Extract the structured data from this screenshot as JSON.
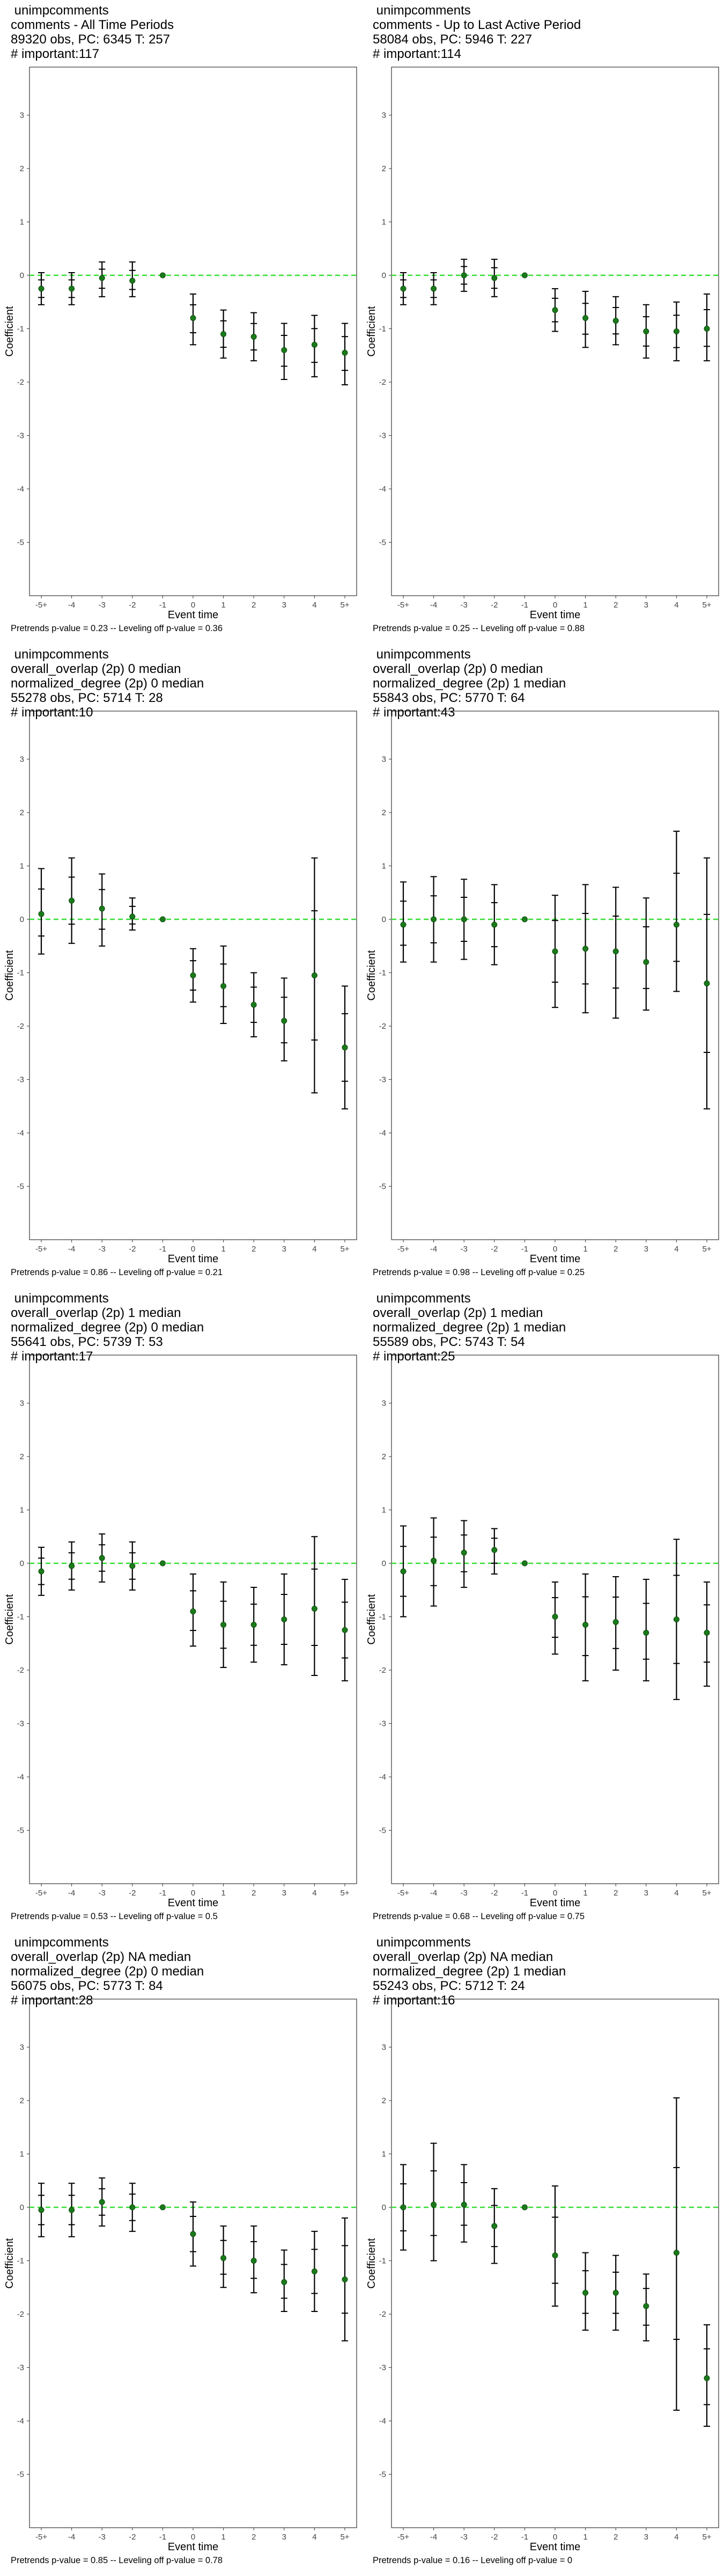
{
  "chart_data": [
    {
      "type": "scatter",
      "title_lines": [
        " unimpcomments",
        "comments - All Time Periods",
        "89320 obs, PC: 6345 T: 257",
        "# important:117"
      ],
      "xlabel": "Event time",
      "ylabel": "Coefficient",
      "categories": [
        "-5+",
        "-4",
        "-3",
        "-2",
        "-1",
        "0",
        "1",
        "2",
        "3",
        "4",
        "5+"
      ],
      "ylim": [
        -6,
        3.9
      ],
      "yticks": [
        -5,
        -4,
        -3,
        -2,
        -1,
        0,
        1,
        2,
        3
      ],
      "series": [
        {
          "values": [
            -0.25,
            -0.25,
            -0.05,
            -0.1,
            0,
            -0.8,
            -1.1,
            -1.15,
            -1.4,
            -1.3,
            -1.45
          ],
          "ci_low": [
            -0.55,
            -0.55,
            -0.4,
            -0.4,
            0,
            -1.3,
            -1.55,
            -1.6,
            -1.95,
            -1.9,
            -2.05
          ],
          "ci_high": [
            0.05,
            0.05,
            0.25,
            0.25,
            0,
            -0.35,
            -0.65,
            -0.7,
            -0.9,
            -0.75,
            -0.9
          ]
        }
      ],
      "footnote": "Pretrends p-value = 0.23 -- Leveling off p-value = 0.36"
    },
    {
      "type": "scatter",
      "title_lines": [
        " unimpcomments",
        "comments - Up to Last Active Period",
        "58084 obs, PC: 5946 T: 227",
        "# important:114"
      ],
      "xlabel": "Event time",
      "ylabel": "Coefficient",
      "categories": [
        "-5+",
        "-4",
        "-3",
        "-2",
        "-1",
        "0",
        "1",
        "2",
        "3",
        "4",
        "5+"
      ],
      "ylim": [
        -6,
        3.9
      ],
      "yticks": [
        -5,
        -4,
        -3,
        -2,
        -1,
        0,
        1,
        2,
        3
      ],
      "series": [
        {
          "values": [
            -0.25,
            -0.25,
            0.0,
            -0.05,
            0,
            -0.65,
            -0.8,
            -0.85,
            -1.05,
            -1.05,
            -1.0
          ],
          "ci_low": [
            -0.55,
            -0.55,
            -0.3,
            -0.4,
            0,
            -1.05,
            -1.35,
            -1.3,
            -1.55,
            -1.6,
            -1.6
          ],
          "ci_high": [
            0.05,
            0.05,
            0.3,
            0.3,
            0,
            -0.25,
            -0.3,
            -0.4,
            -0.55,
            -0.5,
            -0.35
          ]
        }
      ],
      "footnote": "Pretrends p-value = 0.25 -- Leveling off p-value = 0.88"
    },
    {
      "type": "scatter",
      "title_lines": [
        " unimpcomments",
        "overall_overlap (2p) 0 median",
        "normalized_degree (2p) 0 median",
        "55278 obs, PC: 5714 T: 28",
        "# important:10"
      ],
      "xlabel": "Event time",
      "ylabel": "Coefficient",
      "categories": [
        "-5+",
        "-4",
        "-3",
        "-2",
        "-1",
        "0",
        "1",
        "2",
        "3",
        "4",
        "5+"
      ],
      "ylim": [
        -6,
        3.9
      ],
      "yticks": [
        -5,
        -4,
        -3,
        -2,
        -1,
        0,
        1,
        2,
        3
      ],
      "series": [
        {
          "values": [
            0.1,
            0.35,
            0.2,
            0.05,
            0,
            -1.05,
            -1.25,
            -1.6,
            -1.9,
            -1.05,
            -2.4
          ],
          "ci_low": [
            -0.65,
            -0.45,
            -0.5,
            -0.2,
            0,
            -1.55,
            -1.95,
            -2.2,
            -2.65,
            -3.25,
            -3.55
          ],
          "ci_high": [
            0.95,
            1.15,
            0.85,
            0.4,
            0,
            -0.55,
            -0.5,
            -1.0,
            -1.1,
            1.15,
            -1.25
          ]
        }
      ],
      "footnote": "Pretrends p-value = 0.86 -- Leveling off p-value = 0.21"
    },
    {
      "type": "scatter",
      "title_lines": [
        " unimpcomments",
        "overall_overlap (2p) 0 median",
        "normalized_degree (2p) 1 median",
        "55843 obs, PC: 5770 T: 64",
        "# important:43"
      ],
      "xlabel": "Event time",
      "ylabel": "Coefficient",
      "categories": [
        "-5+",
        "-4",
        "-3",
        "-2",
        "-1",
        "0",
        "1",
        "2",
        "3",
        "4",
        "5+"
      ],
      "ylim": [
        -6,
        3.9
      ],
      "yticks": [
        -5,
        -4,
        -3,
        -2,
        -1,
        0,
        1,
        2,
        3
      ],
      "series": [
        {
          "values": [
            -0.1,
            0.0,
            0.0,
            -0.1,
            0,
            -0.6,
            -0.55,
            -0.6,
            -0.8,
            -0.1,
            -1.2
          ],
          "ci_low": [
            -0.8,
            -0.8,
            -0.75,
            -0.85,
            0,
            -1.65,
            -1.75,
            -1.85,
            -1.7,
            -1.35,
            -3.55
          ],
          "ci_high": [
            0.7,
            0.8,
            0.75,
            0.65,
            0,
            0.45,
            0.65,
            0.6,
            0.4,
            1.65,
            1.15
          ]
        }
      ],
      "footnote": "Pretrends p-value = 0.98 -- Leveling off p-value = 0.25"
    },
    {
      "type": "scatter",
      "title_lines": [
        " unimpcomments",
        "overall_overlap (2p) 1 median",
        "normalized_degree (2p) 0 median",
        "55641 obs, PC: 5739 T: 53",
        "# important:17"
      ],
      "xlabel": "Event time",
      "ylabel": "Coefficient",
      "categories": [
        "-5+",
        "-4",
        "-3",
        "-2",
        "-1",
        "0",
        "1",
        "2",
        "3",
        "4",
        "5+"
      ],
      "ylim": [
        -6,
        3.9
      ],
      "yticks": [
        -5,
        -4,
        -3,
        -2,
        -1,
        0,
        1,
        2,
        3
      ],
      "series": [
        {
          "values": [
            -0.15,
            -0.05,
            0.1,
            -0.05,
            0,
            -0.9,
            -1.15,
            -1.15,
            -1.05,
            -0.85,
            -1.25
          ],
          "ci_low": [
            -0.6,
            -0.5,
            -0.35,
            -0.5,
            0,
            -1.55,
            -1.95,
            -1.85,
            -1.9,
            -2.1,
            -2.2
          ],
          "ci_high": [
            0.3,
            0.4,
            0.55,
            0.4,
            0,
            -0.2,
            -0.35,
            -0.45,
            -0.2,
            0.5,
            -0.3
          ]
        }
      ],
      "footnote": "Pretrends p-value = 0.53 -- Leveling off p-value = 0.5"
    },
    {
      "type": "scatter",
      "title_lines": [
        " unimpcomments",
        "overall_overlap (2p) 1 median",
        "normalized_degree (2p) 1 median",
        "55589 obs, PC: 5743 T: 54",
        "# important:25"
      ],
      "xlabel": "Event time",
      "ylabel": "Coefficient",
      "categories": [
        "-5+",
        "-4",
        "-3",
        "-2",
        "-1",
        "0",
        "1",
        "2",
        "3",
        "4",
        "5+"
      ],
      "ylim": [
        -6,
        3.9
      ],
      "yticks": [
        -5,
        -4,
        -3,
        -2,
        -1,
        0,
        1,
        2,
        3
      ],
      "series": [
        {
          "values": [
            -0.15,
            0.05,
            0.2,
            0.25,
            0,
            -1.0,
            -1.15,
            -1.1,
            -1.3,
            -1.05,
            -1.3
          ],
          "ci_low": [
            -1.0,
            -0.8,
            -0.45,
            -0.2,
            0,
            -1.7,
            -2.2,
            -2.0,
            -2.2,
            -2.55,
            -2.3
          ],
          "ci_high": [
            0.7,
            0.85,
            0.8,
            0.65,
            0,
            -0.35,
            -0.2,
            -0.25,
            -0.3,
            0.45,
            -0.35
          ]
        }
      ],
      "footnote": "Pretrends p-value = 0.68 -- Leveling off p-value = 0.75"
    },
    {
      "type": "scatter",
      "title_lines": [
        " unimpcomments",
        "overall_overlap (2p) NA median",
        "normalized_degree (2p) 0 median",
        "56075 obs, PC: 5773 T: 84",
        "# important:28"
      ],
      "xlabel": "Event time",
      "ylabel": "Coefficient",
      "categories": [
        "-5+",
        "-4",
        "-3",
        "-2",
        "-1",
        "0",
        "1",
        "2",
        "3",
        "4",
        "5+"
      ],
      "ylim": [
        -6,
        3.9
      ],
      "yticks": [
        -5,
        -4,
        -3,
        -2,
        -1,
        0,
        1,
        2,
        3
      ],
      "series": [
        {
          "values": [
            -0.05,
            -0.05,
            0.1,
            0.0,
            0,
            -0.5,
            -0.95,
            -1.0,
            -1.4,
            -1.2,
            -1.35
          ],
          "ci_low": [
            -0.55,
            -0.55,
            -0.35,
            -0.45,
            0,
            -1.1,
            -1.5,
            -1.6,
            -1.95,
            -1.95,
            -2.5
          ],
          "ci_high": [
            0.45,
            0.45,
            0.55,
            0.45,
            0,
            0.1,
            -0.35,
            -0.35,
            -0.8,
            -0.45,
            -0.2
          ]
        }
      ],
      "footnote": "Pretrends p-value = 0.85 -- Leveling off p-value = 0.78"
    },
    {
      "type": "scatter",
      "title_lines": [
        " unimpcomments",
        "overall_overlap (2p) NA median",
        "normalized_degree (2p) 1 median",
        "55243 obs, PC: 5712 T: 24",
        "# important:16"
      ],
      "xlabel": "Event time",
      "ylabel": "Coefficient",
      "categories": [
        "-5+",
        "-4",
        "-3",
        "-2",
        "-1",
        "0",
        "1",
        "2",
        "3",
        "4",
        "5+"
      ],
      "ylim": [
        -6,
        3.9
      ],
      "yticks": [
        -5,
        -4,
        -3,
        -2,
        -1,
        0,
        1,
        2,
        3
      ],
      "series": [
        {
          "values": [
            0.0,
            0.05,
            0.05,
            -0.35,
            0,
            -0.9,
            -1.6,
            -1.6,
            -1.85,
            -0.85,
            -3.2
          ],
          "ci_low": [
            -0.8,
            -1.0,
            -0.65,
            -1.05,
            0,
            -1.85,
            -2.3,
            -2.3,
            -2.5,
            -3.8,
            -4.1
          ],
          "ci_high": [
            0.8,
            1.2,
            0.8,
            0.35,
            0,
            0.4,
            -0.85,
            -0.9,
            -1.25,
            2.05,
            -2.2
          ]
        }
      ],
      "footnote": "Pretrends p-value = 0.16 -- Leveling off p-value = 0"
    }
  ],
  "colors": {
    "point": "#1a7a1a",
    "zero_line": "#33dd33",
    "error_bar": "#000000",
    "frame": "#333333"
  }
}
